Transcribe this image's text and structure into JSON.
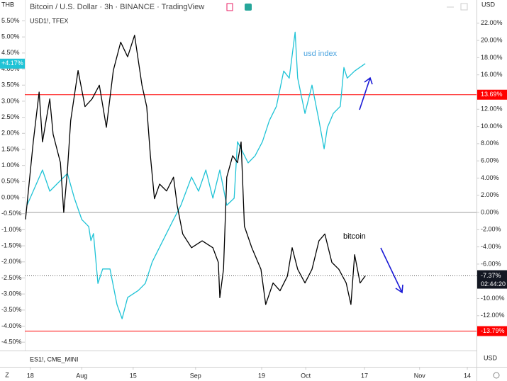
{
  "chart_data": {
    "type": "line",
    "title": "Bitcoin / U.S. Dollar · 3h · BINANCE · TradingView",
    "subtitle": "USD1!, TFEX",
    "lower_pane_label": "ES1!, CME_MINI",
    "y_currency": "THB",
    "y2_currency": "USD",
    "x_currency": "USD",
    "scale_mode": "Z",
    "xlim": [
      -1.5,
      121.5
    ],
    "xticks": [
      {
        "value": 0,
        "label": "18"
      },
      {
        "value": 14,
        "label": "Aug"
      },
      {
        "value": 28,
        "label": "15"
      },
      {
        "value": 45,
        "label": "Sep"
      },
      {
        "value": 63,
        "label": "19"
      },
      {
        "value": 75,
        "label": "Oct"
      },
      {
        "value": 91,
        "label": "17"
      },
      {
        "value": 106,
        "label": "Nov"
      },
      {
        "value": 119,
        "label": "14"
      }
    ],
    "ylim": [
      -4.76,
      6.15
    ],
    "yticks": [
      {
        "value": 5.5,
        "label": "5.50%"
      },
      {
        "value": 5,
        "label": "5.00%"
      },
      {
        "value": 4.5,
        "label": "4.50%"
      },
      {
        "value": 4,
        "label": "4.00%"
      },
      {
        "value": 3.5,
        "label": "3.50%"
      },
      {
        "value": 3,
        "label": "3.00%"
      },
      {
        "value": 2.5,
        "label": "2.50%"
      },
      {
        "value": 2,
        "label": "2.00%"
      },
      {
        "value": 1.5,
        "label": "1.50%"
      },
      {
        "value": 1,
        "label": "1.00%"
      },
      {
        "value": 0.5,
        "label": "0.50%"
      },
      {
        "value": 0,
        "label": "0.00%"
      },
      {
        "value": -0.5,
        "label": "-0.50%"
      },
      {
        "value": -1,
        "label": "-1.00%"
      },
      {
        "value": -1.5,
        "label": "-1.50%"
      },
      {
        "value": -2,
        "label": "-2.00%"
      },
      {
        "value": -2.5,
        "label": "-2.50%"
      },
      {
        "value": -3,
        "label": "-3.00%"
      },
      {
        "value": -3.5,
        "label": "-3.50%"
      },
      {
        "value": -4,
        "label": "-4.00%"
      },
      {
        "value": -4.5,
        "label": "-4.50%"
      }
    ],
    "y2lim": [
      -16.05,
      24.7
    ],
    "y2ticks": [
      {
        "value": 22,
        "label": "22.00%"
      },
      {
        "value": 20,
        "label": "20.00%"
      },
      {
        "value": 18,
        "label": "18.00%"
      },
      {
        "value": 16,
        "label": "16.00%"
      },
      {
        "value": 12,
        "label": "12.00%"
      },
      {
        "value": 10,
        "label": "10.00%"
      },
      {
        "value": 8,
        "label": "8.00%"
      },
      {
        "value": 6,
        "label": "6.00%"
      },
      {
        "value": 4,
        "label": "4.00%"
      },
      {
        "value": 2,
        "label": "2.00%"
      },
      {
        "value": 0,
        "label": "0.00%"
      },
      {
        "value": -2,
        "label": "-2.00%"
      },
      {
        "value": -4,
        "label": "-4.00%"
      },
      {
        "value": -6,
        "label": "-6.00%"
      },
      {
        "value": -10,
        "label": "-10.00%"
      },
      {
        "value": -12,
        "label": "-12.00%"
      }
    ],
    "hlines": [
      {
        "value": 13.69,
        "axis": "y2",
        "color": "#ff0000",
        "label": "13.69%"
      },
      {
        "value": -13.79,
        "axis": "y2",
        "color": "#ff0000",
        "label": "-13.79%"
      },
      {
        "value": 0,
        "axis": "y2",
        "color": "#9e9e9e"
      }
    ],
    "series": [
      {
        "name": "usd index",
        "color": "#1fc3d6",
        "axis": "y",
        "last_label": "+4.17%",
        "x": [
          -0.9,
          3.3,
          5.3,
          7.2,
          10.1,
          12.0,
          14.0,
          15.9,
          16.5,
          17.2,
          18.4,
          19.7,
          21.7,
          23.6,
          25.0,
          26.5,
          29.4,
          31.3,
          33.2,
          36.1,
          39.0,
          41.0,
          43.9,
          45.8,
          47.8,
          49.7,
          51.6,
          53.5,
          55.5,
          56.4,
          57.4,
          59.3,
          61.2,
          63.2,
          65.1,
          67.0,
          69.0,
          70.5,
          72.1,
          72.8,
          74.8,
          76.7,
          78.6,
          80.0,
          80.9,
          82.5,
          84.4,
          85.4,
          86.3,
          88.3,
          91.2
        ],
        "values": [
          -0.24,
          0.86,
          0.2,
          0.42,
          0.75,
          -0.02,
          -0.68,
          -0.9,
          -1.34,
          -1.12,
          -2.67,
          -2.22,
          -2.22,
          -3.33,
          -3.77,
          -3.11,
          -2.89,
          -2.67,
          -2.0,
          -1.34,
          -0.68,
          -0.24,
          0.64,
          0.2,
          0.86,
          -0.02,
          0.86,
          -0.24,
          -0.02,
          1.74,
          1.52,
          1.08,
          1.3,
          1.74,
          2.4,
          2.84,
          3.94,
          3.72,
          5.15,
          3.72,
          2.62,
          3.5,
          2.4,
          1.52,
          2.18,
          2.62,
          2.84,
          4.05,
          3.72,
          3.94,
          4.17
        ]
      },
      {
        "name": "bitcoin",
        "color": "#000000",
        "axis": "y2",
        "last_label": "-7.37%",
        "countdown": "02:44:20",
        "x": [
          -1.3,
          0.8,
          2.4,
          3.3,
          4.3,
          5.3,
          6.2,
          8.2,
          9.1,
          10.1,
          11.0,
          13.0,
          14.9,
          16.8,
          18.8,
          20.7,
          22.6,
          24.6,
          26.5,
          28.4,
          30.4,
          31.7,
          32.7,
          33.8,
          35.2,
          37.1,
          39.0,
          40.0,
          41.5,
          43.9,
          46.8,
          49.7,
          51.2,
          51.6,
          52.6,
          53.5,
          55.1,
          56.4,
          57.4,
          58.3,
          60.3,
          62.8,
          64.1,
          66.1,
          68.0,
          70.0,
          71.3,
          72.8,
          74.8,
          76.7,
          78.6,
          80.2,
          82.1,
          84.0,
          86.0,
          87.3,
          88.3,
          89.8,
          91.2
        ],
        "values": [
          -0.8,
          8.2,
          14.0,
          8.2,
          10.7,
          13.2,
          9.1,
          5.8,
          0.0,
          4.9,
          10.7,
          16.5,
          12.3,
          13.2,
          14.8,
          9.9,
          16.5,
          19.8,
          18.1,
          20.6,
          14.8,
          12.3,
          6.6,
          1.6,
          3.3,
          2.5,
          4.1,
          0.8,
          -2.5,
          -4.1,
          -3.3,
          -4.1,
          -5.8,
          -9.9,
          -6.6,
          4.1,
          6.6,
          5.8,
          8.2,
          -1.6,
          -4.1,
          -6.6,
          -10.7,
          -8.2,
          -9.1,
          -7.4,
          -4.1,
          -6.6,
          -8.2,
          -6.6,
          -3.3,
          -2.5,
          -5.8,
          -6.6,
          -8.2,
          -10.7,
          -4.9,
          -8.2,
          -7.37
        ]
      }
    ]
  }
}
